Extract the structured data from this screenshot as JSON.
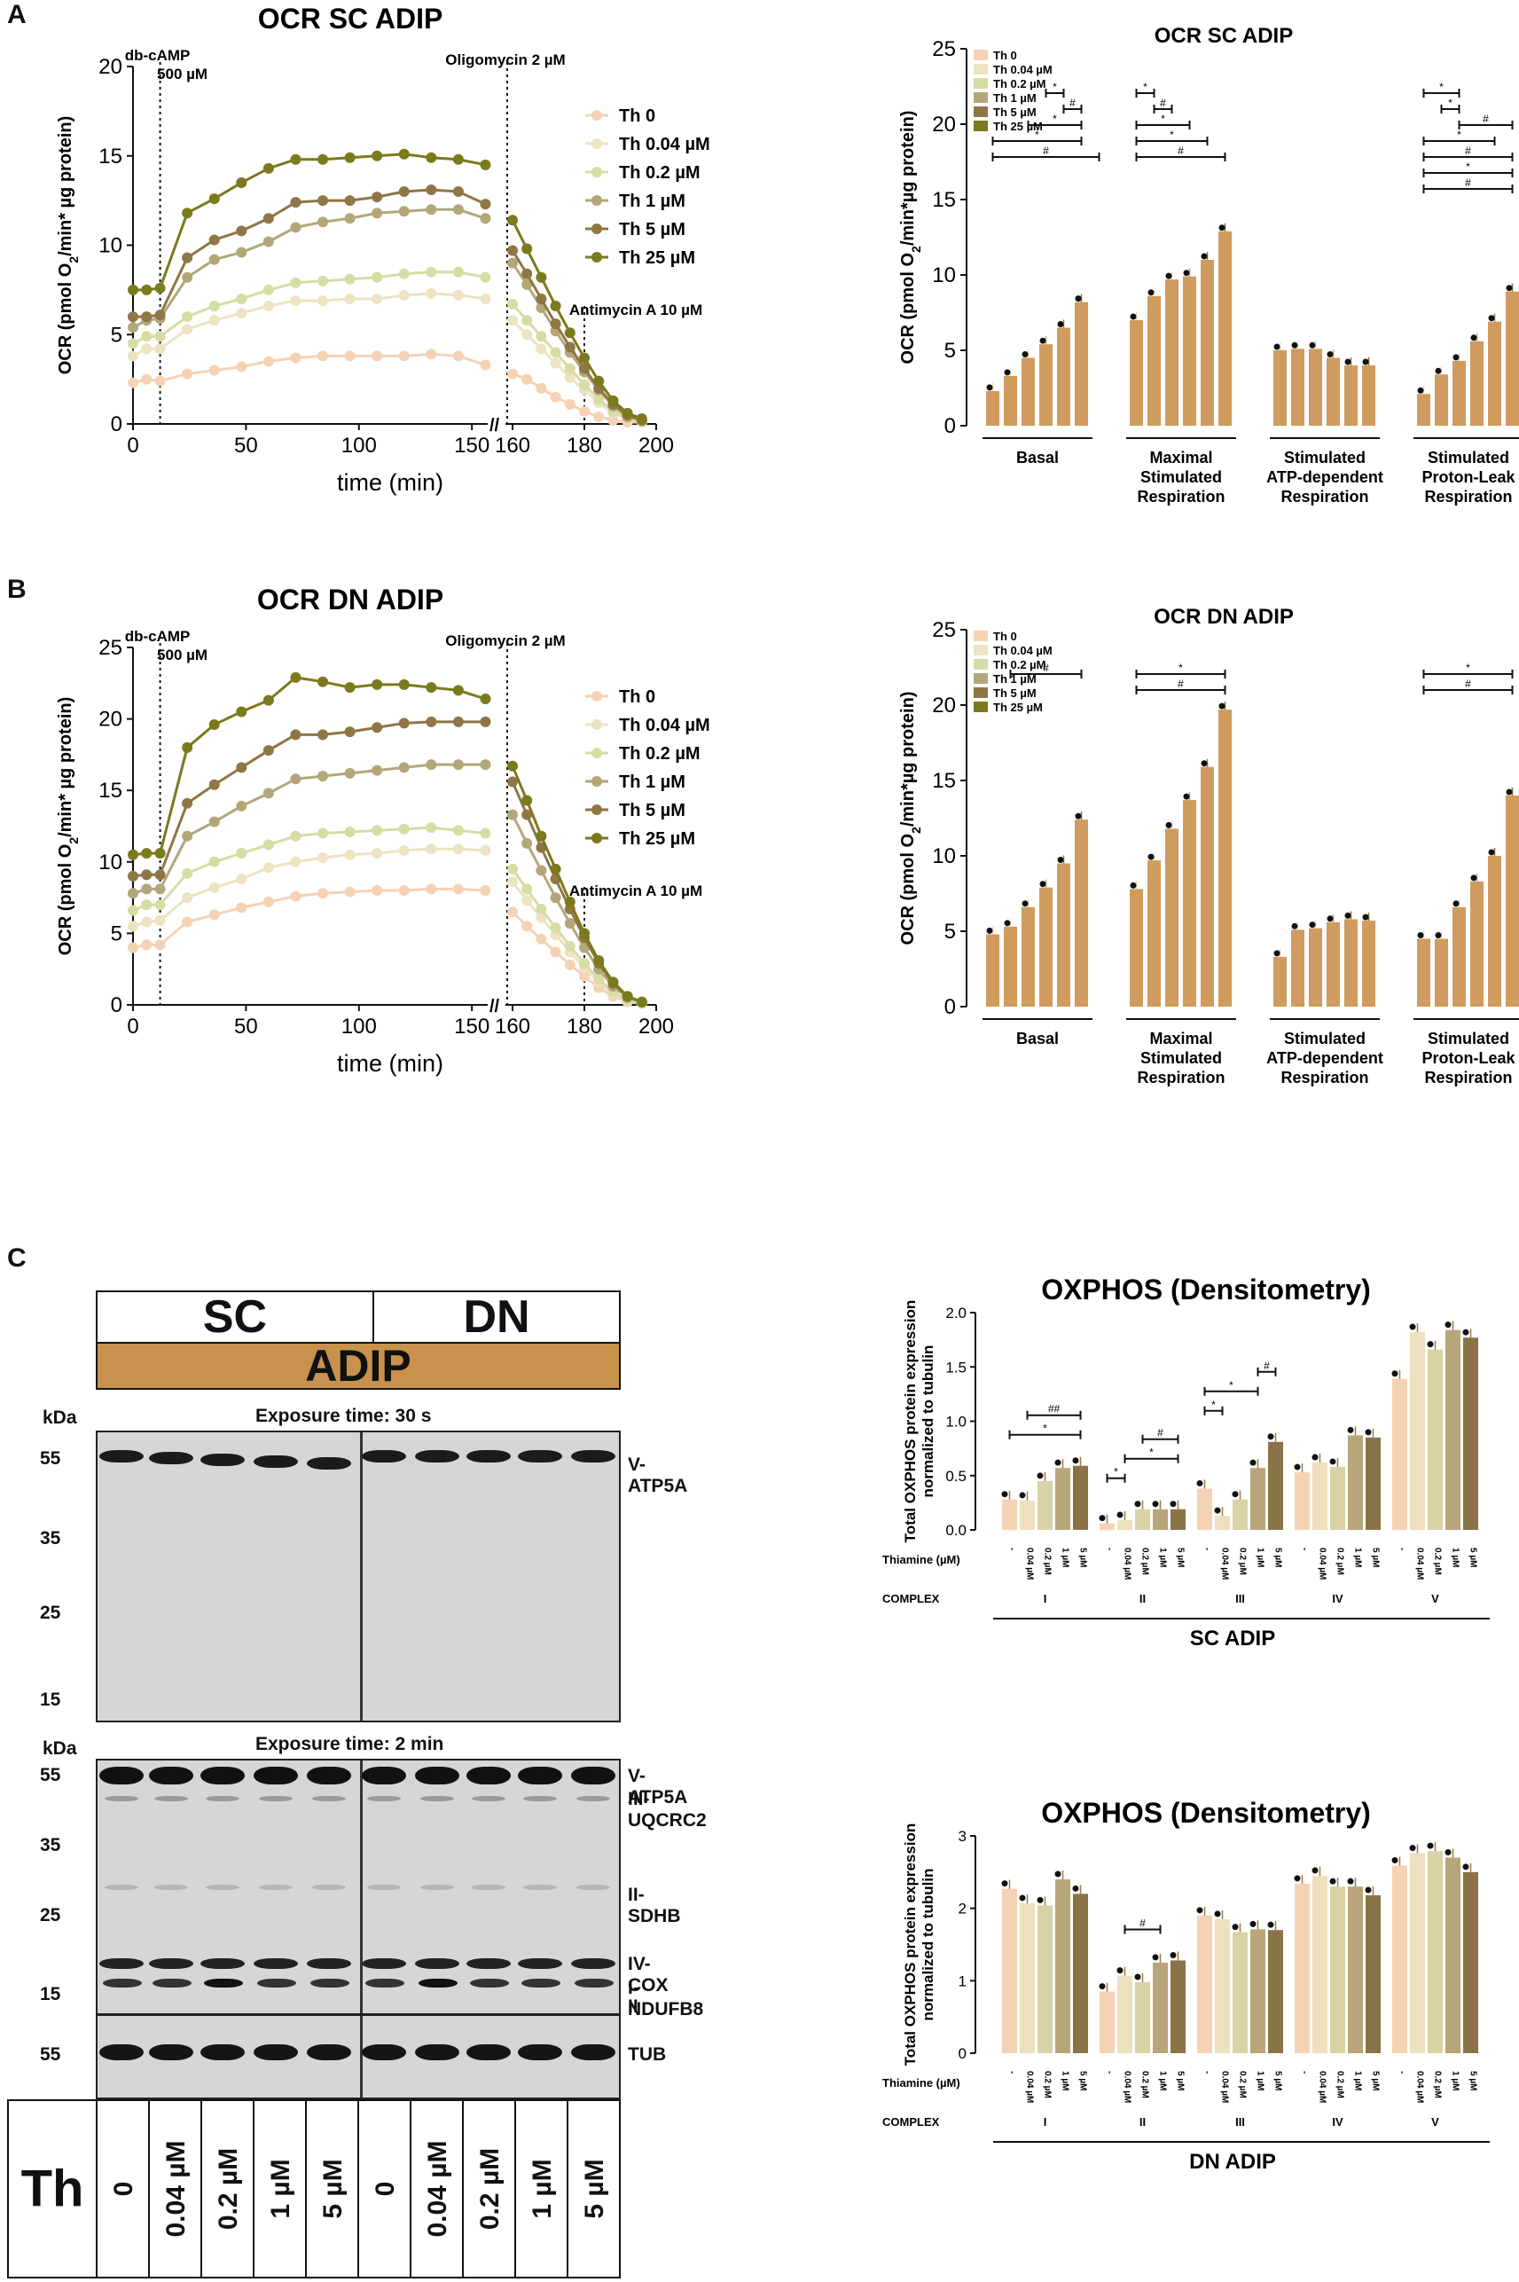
{
  "panel_labels": [
    "A",
    "B",
    "C"
  ],
  "chart_data": [
    {
      "id": "A_time",
      "type": "line",
      "title": "OCR SC ADIP",
      "xlabel": "time (min)",
      "ylabel": "OCR (pmol O2/min* µg protein)",
      "xticks": [
        "0",
        "50",
        "100",
        "150",
        "160",
        "180",
        "200"
      ],
      "yticks": [
        "0",
        "5",
        "10",
        "15",
        "20"
      ],
      "ylim": [
        0,
        20
      ],
      "annotations": {
        "dbcamp": "db-cAMP",
        "dbcamp_dose": "500 µM",
        "oligo": "Oligomycin 2 µM",
        "antimycin": "Antimycin A 10 µM"
      },
      "segment1_x": [
        0,
        6,
        12,
        24,
        36,
        48,
        60,
        72,
        84,
        96,
        108,
        120,
        132,
        144,
        156
      ],
      "segment2_x": [
        160,
        164,
        168,
        172,
        176,
        180,
        184,
        188,
        192,
        196
      ],
      "series": [
        {
          "name": "Th 0",
          "color": "#f6d2b4",
          "seg1": [
            2.3,
            2.5,
            2.4,
            2.8,
            3.0,
            3.2,
            3.5,
            3.7,
            3.8,
            3.8,
            3.8,
            3.8,
            3.9,
            3.8,
            3.3
          ],
          "seg2": [
            2.8,
            2.5,
            2.0,
            1.5,
            1.1,
            0.7,
            0.4,
            0.2,
            0.1,
            0.1
          ]
        },
        {
          "name": "Th 0.04 µM",
          "color": "#ede3c2",
          "seg1": [
            3.8,
            4.2,
            4.2,
            5.3,
            5.8,
            6.2,
            6.6,
            6.9,
            6.9,
            7.0,
            7.0,
            7.2,
            7.3,
            7.2,
            7.0
          ],
          "seg2": [
            5.8,
            5.0,
            4.2,
            3.4,
            2.6,
            1.9,
            1.2,
            0.6,
            0.3,
            0.1
          ]
        },
        {
          "name": "Th 0.2 µM",
          "color": "#d7dca4",
          "seg1": [
            4.5,
            4.9,
            4.9,
            6.0,
            6.6,
            7.0,
            7.5,
            7.9,
            8.0,
            8.1,
            8.2,
            8.4,
            8.5,
            8.5,
            8.2
          ],
          "seg2": [
            6.7,
            5.8,
            4.9,
            4.0,
            3.1,
            2.2,
            1.4,
            0.7,
            0.3,
            0.1
          ]
        },
        {
          "name": "Th 1 µM",
          "color": "#b3a77a",
          "seg1": [
            5.4,
            5.8,
            5.9,
            8.2,
            9.2,
            9.6,
            10.2,
            11.0,
            11.3,
            11.5,
            11.8,
            11.9,
            12.0,
            12.0,
            11.5
          ],
          "seg2": [
            9.0,
            7.8,
            6.5,
            5.2,
            4.0,
            2.9,
            1.9,
            1.0,
            0.4,
            0.2
          ]
        },
        {
          "name": "Th 5 µM",
          "color": "#8f7645",
          "seg1": [
            6.0,
            6.0,
            6.1,
            9.3,
            10.3,
            10.8,
            11.5,
            12.4,
            12.5,
            12.5,
            12.7,
            13.0,
            13.1,
            13.0,
            12.3
          ],
          "seg2": [
            9.7,
            8.4,
            7.0,
            5.6,
            4.3,
            3.1,
            2.0,
            1.1,
            0.5,
            0.2
          ]
        },
        {
          "name": "Th 25 µM",
          "color": "#7b7a1c",
          "seg1": [
            7.5,
            7.5,
            7.6,
            11.8,
            12.6,
            13.5,
            14.3,
            14.8,
            14.8,
            14.9,
            15.0,
            15.1,
            14.9,
            14.8,
            14.5
          ],
          "seg2": [
            11.4,
            9.8,
            8.2,
            6.6,
            5.1,
            3.7,
            2.4,
            1.3,
            0.6,
            0.3
          ]
        }
      ]
    },
    {
      "id": "A_bar",
      "type": "bar",
      "title": "OCR SC ADIP",
      "ylabel": "OCR (pmol O2/min*µg protein)",
      "yticks": [
        "0",
        "5",
        "10",
        "15",
        "20",
        "25"
      ],
      "ylim": [
        0,
        25
      ],
      "legend": [
        "Th 0",
        "Th 0.04 µM",
        "Th 0.2 µM",
        "Th 1 µM",
        "Th 5 µM",
        "Th 25 µM"
      ],
      "groups": [
        "Basal",
        "Maximal Stimulated Respiration",
        "Stimulated ATP-dependent Respiration",
        "Stimulated Proton-Leak Respiration"
      ],
      "values": [
        [
          2.3,
          3.3,
          4.5,
          5.4,
          6.5,
          8.2
        ],
        [
          7.0,
          8.6,
          9.7,
          9.9,
          11.0,
          12.9
        ],
        [
          5.0,
          5.1,
          5.1,
          4.5,
          4.0,
          4.0
        ],
        [
          2.1,
          3.4,
          4.3,
          5.6,
          6.9,
          8.9
        ]
      ],
      "significance": [
        [
          "*",
          0,
          3,
          4
        ],
        [
          "#",
          0,
          4,
          4
        ],
        [
          "*",
          0,
          2,
          5
        ],
        [
          "*",
          0,
          5,
          0
        ],
        [
          "#",
          0,
          6,
          0
        ],
        [
          "*",
          1,
          0,
          1
        ],
        [
          "#",
          1,
          1,
          2
        ],
        [
          "*",
          1,
          0,
          3
        ],
        [
          "*",
          1,
          0,
          4
        ],
        [
          "#",
          1,
          0,
          5
        ],
        [
          "*",
          3,
          0,
          2
        ],
        [
          "*",
          3,
          1,
          2
        ],
        [
          "#",
          3,
          2,
          2
        ],
        [
          "*",
          3,
          0,
          4
        ],
        [
          "#",
          3,
          0,
          5
        ],
        [
          "*",
          3,
          0,
          5
        ],
        [
          "#",
          3,
          0,
          5
        ]
      ]
    },
    {
      "id": "B_time",
      "type": "line",
      "title": "OCR DN ADIP",
      "xlabel": "time (min)",
      "ylabel": "OCR (pmol O2/min* µg protein)",
      "xticks": [
        "0",
        "50",
        "100",
        "150",
        "160",
        "180",
        "200"
      ],
      "yticks": [
        "0",
        "5",
        "10",
        "15",
        "20",
        "25"
      ],
      "ylim": [
        0,
        25
      ],
      "annotations": {
        "dbcamp": "db-cAMP",
        "dbcamp_dose": "500 µM",
        "oligo": "Oligomycin 2 µM",
        "antimycin": "Antimycin A 10 µM"
      },
      "segment1_x": [
        0,
        6,
        12,
        24,
        36,
        48,
        60,
        72,
        84,
        96,
        108,
        120,
        132,
        144,
        156
      ],
      "segment2_x": [
        160,
        164,
        168,
        172,
        176,
        180,
        184,
        188,
        192,
        196
      ],
      "series": [
        {
          "name": "Th 0",
          "color": "#f6d2b4",
          "seg1": [
            4.0,
            4.2,
            4.2,
            5.8,
            6.3,
            6.8,
            7.2,
            7.6,
            7.8,
            7.9,
            8.0,
            8.0,
            8.1,
            8.1,
            8.0
          ],
          "seg2": [
            6.5,
            5.5,
            4.6,
            3.7,
            2.8,
            2.0,
            1.2,
            0.6,
            0.2,
            0.1
          ]
        },
        {
          "name": "Th 0.04 µM",
          "color": "#ede3c2",
          "seg1": [
            5.5,
            5.8,
            5.9,
            7.5,
            8.2,
            8.8,
            9.6,
            10.0,
            10.3,
            10.5,
            10.6,
            10.8,
            10.9,
            10.9,
            10.8
          ],
          "seg2": [
            8.6,
            7.3,
            6.1,
            4.9,
            3.7,
            2.6,
            1.6,
            0.8,
            0.3,
            0.1
          ]
        },
        {
          "name": "Th 0.2 µM",
          "color": "#d7dca4",
          "seg1": [
            6.6,
            7.0,
            7.0,
            9.2,
            10.0,
            10.6,
            11.2,
            11.8,
            12.0,
            12.1,
            12.2,
            12.3,
            12.4,
            12.2,
            12.0
          ],
          "seg2": [
            9.5,
            8.1,
            6.7,
            5.4,
            4.1,
            2.9,
            1.8,
            0.9,
            0.3,
            0.1
          ]
        },
        {
          "name": "Th 1 µM",
          "color": "#b3a77a",
          "seg1": [
            7.8,
            8.1,
            8.1,
            11.8,
            12.8,
            13.9,
            14.8,
            15.8,
            16.0,
            16.2,
            16.4,
            16.6,
            16.8,
            16.8,
            16.8
          ],
          "seg2": [
            13.3,
            11.3,
            9.4,
            7.5,
            5.7,
            4.0,
            2.5,
            1.3,
            0.5,
            0.2
          ]
        },
        {
          "name": "Th 5 µM",
          "color": "#8f7645",
          "seg1": [
            9.0,
            9.1,
            9.1,
            14.1,
            15.4,
            16.6,
            17.8,
            18.9,
            18.9,
            19.1,
            19.4,
            19.7,
            19.8,
            19.8,
            19.8
          ],
          "seg2": [
            15.6,
            13.3,
            11.0,
            8.8,
            6.7,
            4.7,
            2.9,
            1.5,
            0.6,
            0.2
          ]
        },
        {
          "name": "Th 25 µM",
          "color": "#7b7a1c",
          "seg1": [
            10.5,
            10.6,
            10.6,
            18.0,
            19.6,
            20.5,
            21.3,
            22.9,
            22.6,
            22.2,
            22.4,
            22.4,
            22.2,
            22.0,
            21.4
          ],
          "seg2": [
            16.7,
            14.3,
            11.8,
            9.5,
            7.2,
            5.0,
            3.1,
            1.6,
            0.6,
            0.2
          ]
        }
      ]
    },
    {
      "id": "B_bar",
      "type": "bar",
      "title": "OCR DN ADIP",
      "ylabel": "OCR (pmol O2/min*µg protein)",
      "yticks": [
        "0",
        "5",
        "10",
        "15",
        "20",
        "25"
      ],
      "ylim": [
        0,
        25
      ],
      "legend": [
        "Th 0",
        "Th 0.04 µM",
        "Th 0.2 µM",
        "Th 1 µM",
        "Th 5 µM",
        "Th 25 µM"
      ],
      "groups": [
        "Basal",
        "Maximal Stimulated Respiration",
        "Stimulated ATP-dependent Respiration",
        "Stimulated Proton-Leak Respiration"
      ],
      "values": [
        [
          4.8,
          5.3,
          6.6,
          7.9,
          9.5,
          12.4
        ],
        [
          7.8,
          9.7,
          11.8,
          13.7,
          15.9,
          19.7
        ],
        [
          3.3,
          5.1,
          5.2,
          5.6,
          5.8,
          5.7
        ],
        [
          4.5,
          4.5,
          6.6,
          8.3,
          10.0,
          14.0
        ]
      ],
      "significance": [
        [
          "#",
          0,
          1,
          5
        ],
        [
          "*",
          1,
          0,
          5
        ],
        [
          "#",
          1,
          0,
          5
        ],
        [
          "*",
          3,
          0,
          5
        ],
        [
          "#",
          3,
          0,
          5
        ]
      ]
    },
    {
      "id": "C_sc",
      "type": "bar",
      "title": "OXPHOS (Densitometry)",
      "ylabel": "Total OXPHOS protein expression normalized to tubulin",
      "yticks": [
        "0.0",
        "0.5",
        "1.0",
        "1.5",
        "2.0"
      ],
      "ylim": [
        0,
        2.0
      ],
      "xrow_label": "Thiamine (µM)",
      "complex_label": "COMPLEX",
      "doses": [
        "-",
        "0.04 µM",
        "0.2 µM",
        "1 µM",
        "5 µM"
      ],
      "complexes": [
        "I",
        "II",
        "III",
        "IV",
        "V"
      ],
      "values": [
        [
          0.28,
          0.27,
          0.45,
          0.57,
          0.59
        ],
        [
          0.06,
          0.09,
          0.19,
          0.19,
          0.19
        ],
        [
          0.38,
          0.13,
          0.28,
          0.57,
          0.81
        ],
        [
          0.53,
          0.62,
          0.58,
          0.87,
          0.85
        ],
        [
          1.39,
          1.82,
          1.66,
          1.84,
          1.77
        ]
      ],
      "footer": "SC ADIP",
      "significance": [
        [
          "*",
          0,
          0,
          4
        ],
        [
          "##",
          0,
          1,
          4
        ],
        [
          "*",
          1,
          0,
          1
        ],
        [
          "*",
          1,
          1,
          4
        ],
        [
          "#",
          1,
          2,
          4
        ],
        [
          "*",
          2,
          0,
          1
        ],
        [
          "*",
          2,
          0,
          3
        ],
        [
          "#",
          2,
          3,
          4
        ]
      ]
    },
    {
      "id": "C_dn",
      "type": "bar",
      "title": "OXPHOS (Densitometry)",
      "ylabel": "Total OXPHOS protein expression normalized to tubulin",
      "yticks": [
        "0",
        "1",
        "2",
        "3"
      ],
      "ylim": [
        0,
        3
      ],
      "xrow_label": "Thiamine (µM)",
      "complex_label": "COMPLEX",
      "doses": [
        "-",
        "0.04 µM",
        "0.2 µM",
        "1 µM",
        "5 µM"
      ],
      "complexes": [
        "I",
        "II",
        "III",
        "IV",
        "V"
      ],
      "values": [
        [
          2.27,
          2.07,
          2.04,
          2.4,
          2.2
        ],
        [
          0.85,
          1.07,
          0.98,
          1.25,
          1.28
        ],
        [
          1.9,
          1.85,
          1.67,
          1.71,
          1.7
        ],
        [
          2.34,
          2.45,
          2.3,
          2.3,
          2.18
        ],
        [
          2.59,
          2.76,
          2.79,
          2.7,
          2.5
        ]
      ],
      "footer": "DN ADIP",
      "significance": [
        [
          "#",
          1,
          1,
          3
        ]
      ]
    }
  ],
  "western_blot": {
    "header_sc": "SC",
    "header_dn": "DN",
    "header_adip": "ADIP",
    "kda_label": "kDa",
    "exposure1": "Exposure time: 30 s",
    "exposure2": "Exposure time: 2 min",
    "markers1": [
      "55",
      "35",
      "25",
      "15"
    ],
    "markers2": [
      "55",
      "35",
      "25",
      "15"
    ],
    "marker_tub": "55",
    "proteins1": [
      "V-ATP5A"
    ],
    "proteins2": [
      "V-ATP5A",
      "III-UQCRC2",
      "II-SDHB",
      "IV-COX II",
      "I-NDUFB8"
    ],
    "protein_tub": "TUB",
    "th_label": "Th",
    "lanes": [
      "0",
      "0.04 µM",
      "0.2 µM",
      "1 µM",
      "5 µM",
      "0",
      "0.04 µM",
      "0.2 µM",
      "1 µM",
      "5 µM"
    ]
  }
}
